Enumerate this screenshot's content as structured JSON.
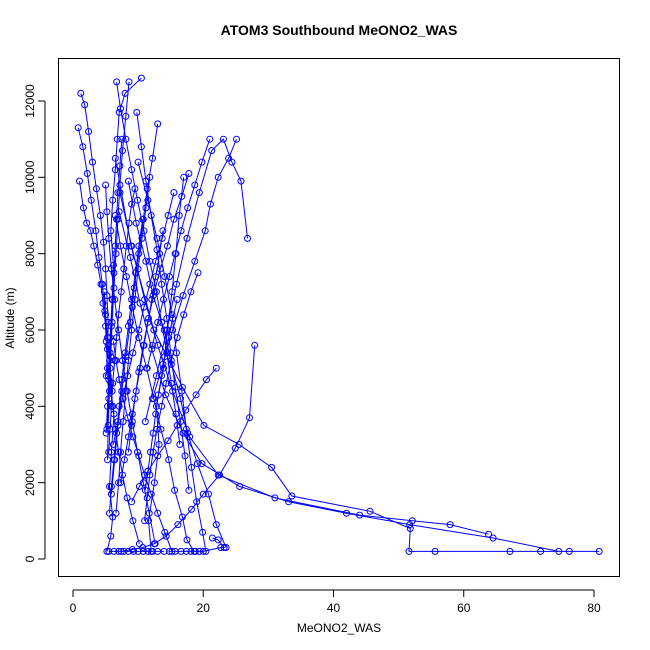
{
  "chart_data": {
    "type": "line",
    "title": "ATOM3 Southbound MeONO2_WAS",
    "xlabel": "MeONO2_WAS",
    "ylabel": "Altitude (m)",
    "xlim": [
      0,
      80
    ],
    "ylim": [
      0,
      12000
    ],
    "x_ticks": [
      0,
      20,
      40,
      60,
      80
    ],
    "y_ticks": [
      0,
      2000,
      4000,
      6000,
      8000,
      10000,
      12000
    ],
    "color": "#0000ff",
    "marker": "open-circle",
    "series": [
      {
        "x": [
          5.2,
          5.8,
          6.1,
          5.6,
          5.9,
          6.3,
          5.4,
          5.7,
          6.0,
          6.2,
          5.8,
          6.1,
          6.5,
          6.8,
          7.1,
          8.0,
          10.5
        ],
        "y": [
          200,
          600,
          1100,
          1900,
          2800,
          3800,
          4800,
          5800,
          6800,
          7700,
          8600,
          9400,
          10200,
          11000,
          11700,
          12200,
          12600
        ]
      },
      {
        "x": [
          12.0,
          11.6,
          12.5,
          13.2,
          12.8,
          13.9,
          14.5,
          15.2,
          15.8,
          16.3,
          17.0
        ],
        "y": [
          200,
          1000,
          2000,
          3000,
          4000,
          5000,
          6000,
          7000,
          8000,
          9000,
          10000
        ]
      },
      {
        "x": [
          80.8,
          76.2,
          71.8,
          67.1,
          55.6,
          51.6,
          51.8,
          45.6,
          33.6,
          30.5,
          25.5,
          20.1,
          16.8,
          12.4,
          8.9,
          6.5
        ],
        "y": [
          200,
          200,
          200,
          200,
          200,
          200,
          800,
          1250,
          1650,
          2400,
          3000,
          3500,
          4500,
          6000,
          8200,
          10500
        ]
      },
      {
        "x": [
          63.8,
          57.9,
          52.1,
          44.0,
          31.0,
          22.3,
          17.9,
          15.3,
          13.0,
          11.0,
          9.0,
          7.2
        ],
        "y": [
          650,
          900,
          1000,
          1150,
          1600,
          2200,
          3200,
          4400,
          5600,
          6800,
          8200,
          9600
        ]
      },
      {
        "x": [
          74.6,
          64.5,
          51.7,
          42.0,
          33.1,
          25.6,
          19.8,
          16.9,
          14.2,
          12.1,
          10.3,
          8.8,
          7.1
        ],
        "y": [
          200,
          550,
          900,
          1200,
          1500,
          1900,
          2500,
          3300,
          4300,
          5500,
          6700,
          7900,
          9100
        ]
      },
      {
        "x": [
          23.5,
          22.0,
          20.8,
          19.1,
          17.6,
          16.5,
          15.1,
          14.0,
          12.3,
          11.2,
          9.7,
          8.5
        ],
        "y": [
          300,
          900,
          1700,
          2500,
          3300,
          4200,
          5100,
          6000,
          6900,
          7800,
          8800,
          9900
        ]
      },
      {
        "x": [
          20.4,
          19.9,
          19.0,
          18.2,
          17.4,
          16.7,
          15.9,
          15.2,
          14.1,
          12.9,
          11.5,
          10.0
        ],
        "y": [
          200,
          700,
          1500,
          2400,
          3400,
          4400,
          5400,
          6400,
          7400,
          8400,
          9400,
          10400
        ]
      },
      {
        "x": [
          18.6,
          17.5,
          16.8,
          15.6,
          14.7,
          13.5,
          12.4,
          11.3,
          10.1,
          9.1,
          8.2,
          7.3,
          6.5
        ],
        "y": [
          200,
          500,
          1100,
          1800,
          2600,
          3400,
          4200,
          5000,
          5800,
          6600,
          7400,
          8200,
          9000
        ]
      },
      {
        "x": [
          27.9,
          27.1,
          24.9,
          22.5,
          20.0,
          18.2,
          16.1,
          14.3,
          12.5,
          10.7,
          9.1,
          7.4
        ],
        "y": [
          5600,
          3700,
          2900,
          2200,
          1700,
          1300,
          900,
          600,
          400,
          300,
          250,
          200
        ]
      },
      {
        "x": [
          26.8,
          25.8,
          24.4,
          23.1,
          21.3,
          19.4,
          17.5,
          15.9,
          14.4,
          12.8,
          11.1
        ],
        "y": [
          8400,
          9900,
          10400,
          11000,
          10700,
          9600,
          8400,
          7200,
          6000,
          4800,
          3600
        ]
      },
      {
        "x": [
          25.1,
          23.9,
          22.3,
          21.1,
          20.3,
          18.7,
          16.9,
          15.3,
          13.8,
          12.2
        ],
        "y": [
          11000,
          10500,
          10000,
          9300,
          8600,
          7800,
          6900,
          6000,
          5100,
          4200
        ]
      },
      {
        "x": [
          22.0,
          20.5,
          18.9,
          17.3,
          16.0,
          14.6,
          13.0,
          11.5,
          10.2,
          9.0
        ],
        "y": [
          5000,
          4700,
          4300,
          3900,
          3500,
          3100,
          2700,
          2300,
          1900,
          1500
        ]
      },
      {
        "x": [
          9.8,
          10.5,
          11.2,
          12.0,
          12.9,
          13.6,
          14.4,
          15.0,
          15.7,
          16.5,
          17.2,
          17.8
        ],
        "y": [
          11700,
          10800,
          9900,
          9000,
          8100,
          7200,
          6300,
          5400,
          4500,
          3600,
          2700,
          1800
        ]
      },
      {
        "x": [
          13.0,
          12.2,
          11.4,
          10.8,
          10.1,
          9.4,
          8.8,
          8.1,
          7.5,
          6.9,
          6.4,
          5.9
        ],
        "y": [
          11400,
          10500,
          9700,
          8900,
          8000,
          7100,
          6200,
          5300,
          4400,
          3500,
          2600,
          1700
        ]
      },
      {
        "x": [
          8.6,
          8.1,
          7.6,
          7.2,
          6.9,
          6.6,
          6.3,
          6.0,
          5.8,
          5.6,
          5.4,
          5.3
        ],
        "y": [
          12500,
          11600,
          10700,
          9800,
          8900,
          8000,
          7100,
          6200,
          5300,
          4400,
          3500,
          2600
        ]
      },
      {
        "x": [
          1.2,
          1.8,
          2.4,
          3.0,
          3.6,
          4.2,
          4.7,
          5.0,
          5.2,
          5.4,
          5.3,
          5.1
        ],
        "y": [
          12200,
          11900,
          11200,
          10400,
          9700,
          9000,
          8300,
          7600,
          6900,
          6200,
          5500,
          4800
        ]
      },
      {
        "x": [
          0.8,
          1.5,
          2.2,
          2.8,
          3.5,
          4.0,
          4.5,
          4.9,
          5.1,
          5.3,
          5.5,
          5.2
        ],
        "y": [
          11300,
          10800,
          10100,
          9400,
          8600,
          7900,
          7200,
          6500,
          5700,
          5000,
          4200,
          3400
        ]
      },
      {
        "x": [
          1.0,
          1.6,
          2.1,
          2.7,
          3.2,
          3.8,
          4.3,
          4.6,
          5.0,
          5.4,
          5.7,
          6.0
        ],
        "y": [
          9900,
          9200,
          8800,
          8600,
          8200,
          7700,
          7200,
          6700,
          6100,
          5600,
          5000,
          4400
        ]
      },
      {
        "x": [
          9.5,
          9.0,
          8.6,
          8.2,
          7.8,
          7.4,
          7.0,
          6.7,
          6.4,
          6.1,
          5.9,
          5.7,
          5.5
        ],
        "y": [
          9700,
          9300,
          8800,
          8200,
          7600,
          7000,
          6400,
          5800,
          5200,
          4600,
          4000,
          3400,
          2800
        ]
      },
      {
        "x": [
          15.5,
          14.6,
          13.7,
          12.7,
          11.8,
          10.9,
          10.1,
          9.2,
          8.4,
          7.6,
          6.9,
          6.2
        ],
        "y": [
          9600,
          9000,
          8400,
          7800,
          7200,
          6600,
          6000,
          5400,
          4800,
          4200,
          3600,
          3000
        ]
      },
      {
        "x": [
          11.8,
          11.2,
          10.6,
          10.0,
          9.5,
          9.0,
          8.5,
          8.1,
          7.7,
          7.3,
          7.0,
          6.6
        ],
        "y": [
          10000,
          9200,
          8400,
          7600,
          6800,
          6000,
          5200,
          4400,
          3600,
          2800,
          2000,
          1200
        ]
      },
      {
        "x": [
          17.8,
          16.7,
          15.5,
          14.5,
          13.4,
          12.5,
          11.6,
          10.8,
          10.1,
          9.5,
          9.0,
          8.5
        ],
        "y": [
          10100,
          9500,
          8900,
          8200,
          7600,
          7000,
          6300,
          5600,
          4900,
          4200,
          3500,
          2800
        ]
      },
      {
        "x": [
          6.7,
          7.3,
          8.1,
          9.0,
          9.9,
          10.9,
          11.8,
          12.8,
          13.6,
          14.4,
          15.1,
          15.8,
          16.4
        ],
        "y": [
          12500,
          11800,
          11000,
          10200,
          9400,
          8600,
          7800,
          7000,
          6200,
          5400,
          4600,
          3800,
          3000
        ]
      },
      {
        "x": [
          5.0,
          5.2,
          5.5,
          5.9,
          6.4,
          7.0,
          7.6,
          8.3,
          9.1,
          9.9,
          10.8,
          11.7,
          12.6
        ],
        "y": [
          9800,
          9100,
          8400,
          7600,
          6800,
          6000,
          5200,
          4400,
          3600,
          2800,
          2000,
          1200,
          400
        ]
      },
      {
        "x": [
          13.8,
          13.3,
          12.7,
          12.1,
          11.5,
          10.9,
          10.3,
          9.7,
          9.1,
          8.5,
          7.9,
          7.3
        ],
        "y": [
          8600,
          8000,
          7400,
          6800,
          6200,
          5600,
          5000,
          4400,
          3800,
          3200,
          2600,
          2000
        ]
      },
      {
        "x": [
          19.2,
          18.1,
          17.0,
          16.0,
          15.1,
          14.3,
          13.6,
          12.9,
          12.3,
          11.8,
          11.4,
          11.0
        ],
        "y": [
          7500,
          7000,
          6400,
          5800,
          5200,
          4600,
          4000,
          3400,
          2800,
          2200,
          1600,
          1000
        ]
      },
      {
        "x": [
          4.8,
          5.0,
          5.3,
          5.6,
          5.8,
          6.1,
          6.5,
          7.0,
          7.6,
          8.3,
          9.2,
          10.2
        ],
        "y": [
          7000,
          6400,
          5800,
          5200,
          4600,
          4000,
          3400,
          2800,
          2200,
          1600,
          1000,
          400
        ]
      },
      {
        "x": [
          7.5,
          7.2,
          6.9,
          6.7,
          6.5,
          6.3,
          6.1,
          5.9,
          5.7,
          5.5,
          5.3,
          5.1
        ],
        "y": [
          11000,
          10300,
          9600,
          8900,
          8200,
          7500,
          6800,
          6100,
          5400,
          4700,
          4000,
          3300
        ]
      },
      {
        "x": [
          10.7,
          10.1,
          9.6,
          9.0,
          8.5,
          8.0,
          7.5,
          7.1,
          6.7,
          6.3,
          5.9,
          5.6
        ],
        "y": [
          8900,
          8200,
          7500,
          6800,
          6100,
          5400,
          4700,
          4000,
          3300,
          2600,
          1900,
          1200
        ]
      },
      {
        "x": [
          16.0,
          15.3,
          14.7,
          14.1,
          13.6,
          13.1,
          12.7,
          12.3,
          11.9,
          11.5,
          11.1
        ],
        "y": [
          6800,
          6300,
          5800,
          5300,
          4800,
          4300,
          3800,
          3300,
          2800,
          2300,
          1800
        ]
      },
      {
        "x": [
          21.0,
          19.8,
          18.7,
          17.6,
          16.6,
          15.7,
          14.8,
          13.9,
          13.0,
          12.2,
          11.4
        ],
        "y": [
          11000,
          10400,
          9800,
          9200,
          8600,
          8000,
          7400,
          6800,
          6200,
          5600,
          5000
        ]
      },
      {
        "x": [
          6.2,
          6.6,
          7.1,
          7.7,
          8.4,
          9.2,
          10.1,
          11.0,
          12.0,
          13.0,
          14.1,
          15.2
        ],
        "y": [
          5700,
          5200,
          4700,
          4200,
          3700,
          3200,
          2700,
          2200,
          1700,
          1200,
          700,
          200
        ]
      },
      {
        "x": [
          5.5,
          6.3,
          7.0,
          7.8,
          8.5,
          9.3,
          10.0,
          10.8,
          11.5,
          12.2,
          13.0,
          14.0
        ],
        "y": [
          200,
          200,
          200,
          200,
          200,
          200,
          200,
          200,
          200,
          200,
          200,
          200
        ]
      },
      {
        "x": [
          14.8,
          15.7,
          16.6,
          17.4,
          18.1,
          18.8,
          19.4,
          20.0,
          22.7,
          23.2,
          22.3,
          21.4
        ],
        "y": [
          200,
          200,
          200,
          200,
          200,
          200,
          200,
          200,
          300,
          300,
          500,
          550
        ]
      }
    ]
  }
}
